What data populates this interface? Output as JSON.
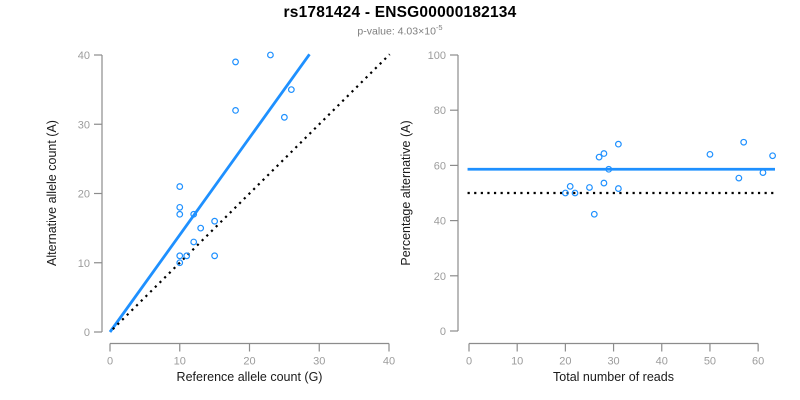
{
  "title": "rs1781424 - ENSG00000182134",
  "subtitle": {
    "base": "p-value: 4.03×10",
    "exponent": "-5"
  },
  "colors": {
    "accent": "#1E90FF",
    "axis": "#8c8c8c",
    "tick_label": "#9c9c9c",
    "axis_title": "#1a1a1a",
    "subtitle": "#7f7f7f",
    "reference": "#000000"
  },
  "chart_data": [
    {
      "type": "scatter",
      "title": "rs1781424 - ENSG00000182134",
      "subtitle": "p-value: 4.03×10^-5",
      "xlabel": "Reference allele count (G)",
      "ylabel": "Alternative allele count (A)",
      "xlim": [
        0,
        40
      ],
      "ylim": [
        0,
        40
      ],
      "xticks": [
        0,
        10,
        20,
        30,
        40
      ],
      "yticks": [
        0,
        10,
        20,
        30,
        40
      ],
      "grid": false,
      "legend": null,
      "points": [
        [
          10,
          10
        ],
        [
          10,
          11
        ],
        [
          11,
          11
        ],
        [
          15,
          11
        ],
        [
          12,
          13
        ],
        [
          13,
          15
        ],
        [
          15,
          16
        ],
        [
          10,
          17
        ],
        [
          12,
          17
        ],
        [
          10,
          18
        ],
        [
          10,
          21
        ],
        [
          25,
          31
        ],
        [
          18,
          32
        ],
        [
          26,
          35
        ],
        [
          18,
          39
        ],
        [
          23,
          40
        ]
      ],
      "lines": [
        {
          "name": "fit-line",
          "style": "solid",
          "color": "#1E90FF",
          "x1": 0,
          "y1": 0,
          "x2": 28.6,
          "y2": 40.1
        },
        {
          "name": "identity-line",
          "style": "dotted",
          "color": "#000000",
          "x1": 0.4,
          "y1": 0.4,
          "x2": 40.1,
          "y2": 40.1
        }
      ]
    },
    {
      "type": "scatter",
      "xlabel": "Total number of reads",
      "ylabel": "Percentage alternative (A)",
      "xlim": [
        0,
        63.5
      ],
      "ylim": [
        0,
        100
      ],
      "xticks": [
        0,
        10,
        20,
        30,
        40,
        50,
        60
      ],
      "yticks": [
        0,
        20,
        40,
        60,
        80,
        100
      ],
      "grid": false,
      "legend": null,
      "points": [
        [
          20,
          50
        ],
        [
          21,
          52.4
        ],
        [
          22,
          50
        ],
        [
          25,
          52
        ],
        [
          26,
          42.3
        ],
        [
          27,
          63
        ],
        [
          28,
          53.6
        ],
        [
          28,
          64.3
        ],
        [
          29,
          58.6
        ],
        [
          31,
          51.6
        ],
        [
          31,
          67.7
        ],
        [
          50,
          64
        ],
        [
          56,
          55.4
        ],
        [
          57,
          68.4
        ],
        [
          61,
          57.4
        ],
        [
          63,
          63.5
        ]
      ],
      "lines": [
        {
          "name": "fit-line",
          "style": "solid",
          "color": "#1E90FF",
          "x1": -0.3,
          "y1": 58.6,
          "x2": 63.5,
          "y2": 58.6
        },
        {
          "name": "reference-line",
          "style": "dotted",
          "color": "#000000",
          "x1": -0.3,
          "y1": 50,
          "x2": 63.5,
          "y2": 50
        }
      ]
    }
  ]
}
